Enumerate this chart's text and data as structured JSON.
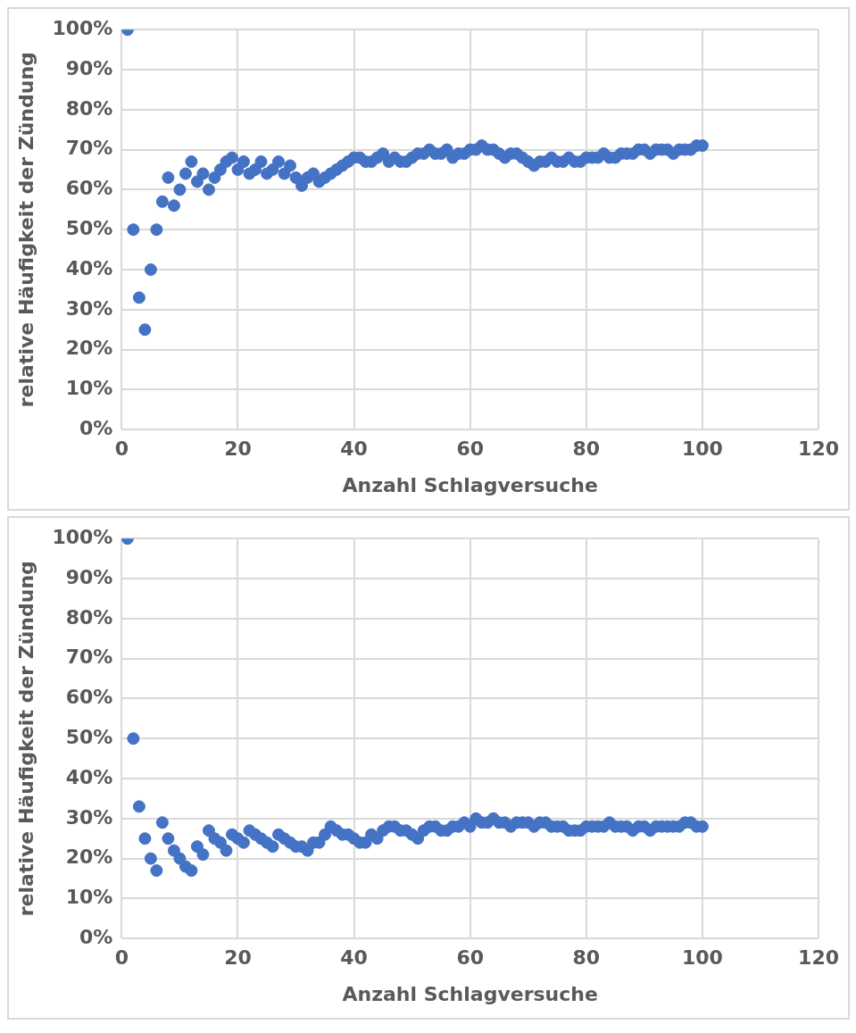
{
  "chart_data": [
    {
      "type": "scatter",
      "xlabel": "Anzahl Schlagversuche",
      "ylabel": "relative Häufigkeit der Zündung",
      "color": "#4472c4",
      "marker": "circle",
      "grid": true,
      "x": [
        1,
        2,
        3,
        4,
        5,
        6,
        7,
        8,
        9,
        10,
        11,
        12,
        13,
        14,
        15,
        16,
        17,
        18,
        19,
        20,
        21,
        22,
        23,
        24,
        25,
        26,
        27,
        28,
        29,
        30,
        31,
        32,
        33,
        34,
        35,
        36,
        37,
        38,
        39,
        40,
        41,
        42,
        43,
        44,
        45,
        46,
        47,
        48,
        49,
        50,
        51,
        52,
        53,
        54,
        55,
        56,
        57,
        58,
        59,
        60,
        61,
        62,
        63,
        64,
        65,
        66,
        67,
        68,
        69,
        70,
        71,
        72,
        73,
        74,
        75,
        76,
        77,
        78,
        79,
        80,
        81,
        82,
        83,
        84,
        85,
        86,
        87,
        88,
        89,
        90,
        91,
        92,
        93,
        94,
        95,
        96,
        97,
        98,
        99,
        100
      ],
      "values": [
        100,
        50,
        33,
        25,
        40,
        50,
        57,
        63,
        56,
        60,
        64,
        67,
        62,
        64,
        60,
        63,
        65,
        67,
        68,
        65,
        67,
        64,
        65,
        67,
        64,
        65,
        67,
        64,
        66,
        63,
        61,
        63,
        64,
        62,
        63,
        64,
        65,
        66,
        67,
        68,
        68,
        67,
        67,
        68,
        69,
        67,
        68,
        67,
        67,
        68,
        69,
        69,
        70,
        69,
        69,
        70,
        68,
        69,
        69,
        70,
        70,
        71,
        70,
        70,
        69,
        68,
        69,
        69,
        68,
        67,
        66,
        67,
        67,
        68,
        67,
        67,
        68,
        67,
        67,
        68,
        68,
        68,
        69,
        68,
        68,
        69,
        69,
        69,
        70,
        70,
        69,
        70,
        70,
        70,
        69,
        70,
        70,
        70,
        71,
        71
      ],
      "xlim": [
        0,
        120
      ],
      "xticks": [
        0,
        20,
        40,
        60,
        80,
        100,
        120
      ],
      "ylim": [
        0,
        100
      ],
      "yticks": [
        {
          "value": 0,
          "label": "0%"
        },
        {
          "value": 10,
          "label": "10%"
        },
        {
          "value": 20,
          "label": "20%"
        },
        {
          "value": 30,
          "label": "30%"
        },
        {
          "value": 40,
          "label": "40%"
        },
        {
          "value": 50,
          "label": "50%"
        },
        {
          "value": 60,
          "label": "60%"
        },
        {
          "value": 70,
          "label": "70%"
        },
        {
          "value": 80,
          "label": "80%"
        },
        {
          "value": 90,
          "label": "90%"
        },
        {
          "value": 100,
          "label": "100%"
        }
      ]
    },
    {
      "type": "scatter",
      "xlabel": "Anzahl Schlagversuche",
      "ylabel": "relative Häufigkeit der Zündung",
      "color": "#4472c4",
      "marker": "circle",
      "grid": true,
      "x": [
        1,
        2,
        3,
        4,
        5,
        6,
        7,
        8,
        9,
        10,
        11,
        12,
        13,
        14,
        15,
        16,
        17,
        18,
        19,
        20,
        21,
        22,
        23,
        24,
        25,
        26,
        27,
        28,
        29,
        30,
        31,
        32,
        33,
        34,
        35,
        36,
        37,
        38,
        39,
        40,
        41,
        42,
        43,
        44,
        45,
        46,
        47,
        48,
        49,
        50,
        51,
        52,
        53,
        54,
        55,
        56,
        57,
        58,
        59,
        60,
        61,
        62,
        63,
        64,
        65,
        66,
        67,
        68,
        69,
        70,
        71,
        72,
        73,
        74,
        75,
        76,
        77,
        78,
        79,
        80,
        81,
        82,
        83,
        84,
        85,
        86,
        87,
        88,
        89,
        90,
        91,
        92,
        93,
        94,
        95,
        96,
        97,
        98,
        99,
        100
      ],
      "values": [
        100,
        50,
        33,
        25,
        20,
        17,
        29,
        25,
        22,
        20,
        18,
        17,
        23,
        21,
        27,
        25,
        24,
        22,
        26,
        25,
        24,
        27,
        26,
        25,
        24,
        23,
        26,
        25,
        24,
        23,
        23,
        22,
        24,
        24,
        26,
        28,
        27,
        26,
        26,
        25,
        24,
        24,
        26,
        25,
        27,
        28,
        28,
        27,
        27,
        26,
        25,
        27,
        28,
        28,
        27,
        27,
        28,
        28,
        29,
        28,
        30,
        29,
        29,
        30,
        29,
        29,
        28,
        29,
        29,
        29,
        28,
        29,
        29,
        28,
        28,
        28,
        27,
        27,
        27,
        28,
        28,
        28,
        28,
        29,
        28,
        28,
        28,
        27,
        28,
        28,
        27,
        28,
        28,
        28,
        28,
        28,
        29,
        29,
        28,
        28
      ],
      "xlim": [
        0,
        120
      ],
      "xticks": [
        0,
        20,
        40,
        60,
        80,
        100,
        120
      ],
      "ylim": [
        0,
        100
      ],
      "yticks": [
        {
          "value": 0,
          "label": "0%"
        },
        {
          "value": 10,
          "label": "10%"
        },
        {
          "value": 20,
          "label": "20%"
        },
        {
          "value": 30,
          "label": "30%"
        },
        {
          "value": 40,
          "label": "40%"
        },
        {
          "value": 50,
          "label": "50%"
        },
        {
          "value": 60,
          "label": "60%"
        },
        {
          "value": 70,
          "label": "70%"
        },
        {
          "value": 80,
          "label": "80%"
        },
        {
          "value": 90,
          "label": "90%"
        },
        {
          "value": 100,
          "label": "100%"
        }
      ]
    }
  ]
}
